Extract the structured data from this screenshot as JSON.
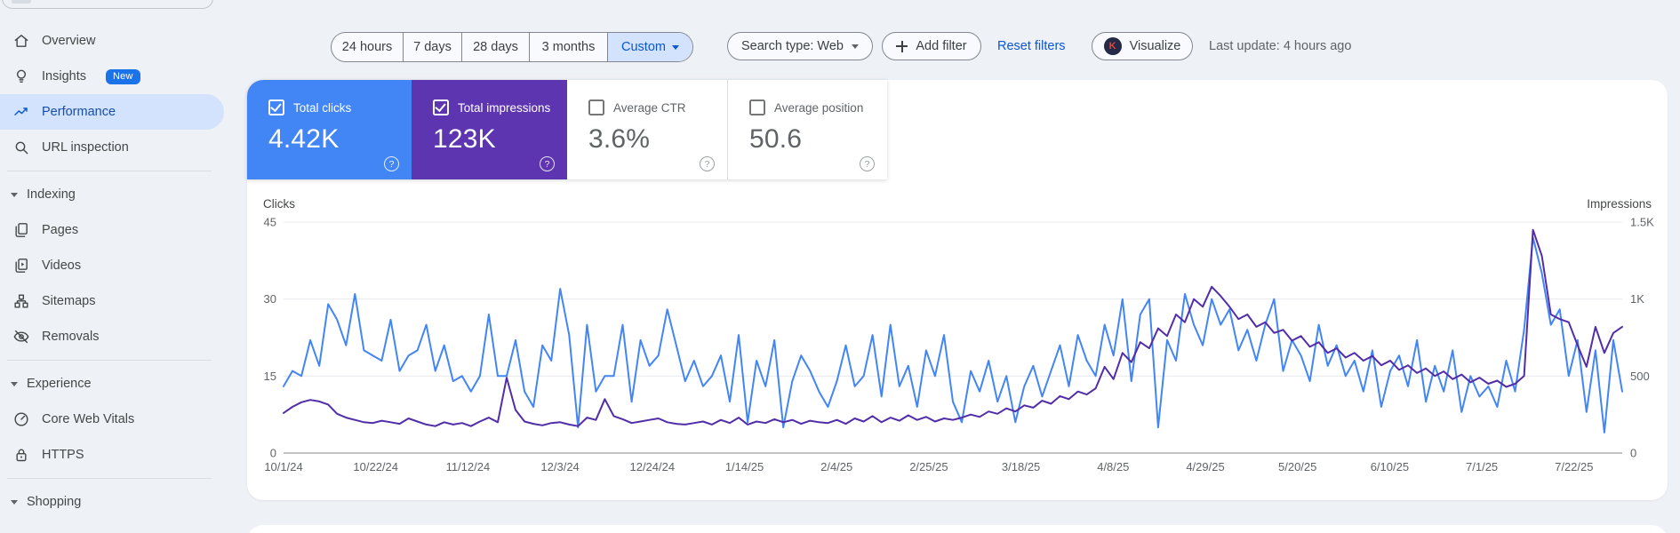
{
  "sidebar": {
    "sections": [
      {
        "items": [
          {
            "icon": "home",
            "label": "Overview"
          },
          {
            "icon": "lightbulb",
            "label": "Insights",
            "badge": "New"
          },
          {
            "icon": "trending-up",
            "label": "Performance",
            "active": true
          },
          {
            "icon": "search",
            "label": "URL inspection"
          }
        ]
      },
      {
        "header": "Indexing",
        "items": [
          {
            "icon": "pages",
            "label": "Pages"
          },
          {
            "icon": "videos",
            "label": "Videos"
          },
          {
            "icon": "sitemaps",
            "label": "Sitemaps"
          },
          {
            "icon": "eye-off",
            "label": "Removals"
          }
        ]
      },
      {
        "header": "Experience",
        "items": [
          {
            "icon": "speedometer",
            "label": "Core Web Vitals"
          },
          {
            "icon": "lock",
            "label": "HTTPS"
          }
        ]
      },
      {
        "header": "Shopping",
        "items": []
      }
    ]
  },
  "toolbar": {
    "date_ranges": [
      {
        "label": "24 hours"
      },
      {
        "label": "7 days"
      },
      {
        "label": "28 days"
      },
      {
        "label": "3 months"
      },
      {
        "label": "Custom",
        "selected": true,
        "caret": true
      }
    ],
    "search_type_label": "Search type: Web",
    "add_filter_label": "Add filter",
    "reset_label": "Reset filters",
    "visualize_label": "Visualize",
    "visualize_icon_letter": "K",
    "last_update": "Last update: 4 hours ago"
  },
  "cards": [
    {
      "label": "Total clicks",
      "value": "4.42K",
      "checked": true,
      "color": "#4285f4"
    },
    {
      "label": "Total impressions",
      "value": "123K",
      "checked": true,
      "color": "#5e35b1"
    },
    {
      "label": "Average CTR",
      "value": "3.6%",
      "checked": false
    },
    {
      "label": "Average position",
      "value": "50.6",
      "checked": false
    }
  ],
  "chart_data": {
    "type": "line",
    "x_tick_labels": [
      "10/1/24",
      "10/22/24",
      "11/12/24",
      "12/3/24",
      "12/24/24",
      "1/14/25",
      "2/4/25",
      "2/25/25",
      "3/18/25",
      "4/8/25",
      "4/29/25",
      "5/20/25",
      "6/10/25",
      "7/1/25",
      "7/22/25"
    ],
    "left_axis": {
      "label": "Clicks",
      "ticks": [
        45,
        30,
        15,
        0
      ],
      "max": 45
    },
    "right_axis": {
      "label": "Impressions",
      "tick_labels": [
        "1.5K",
        "1K",
        "500",
        "0"
      ],
      "max": 1500
    },
    "grid": true,
    "legend_position": "none",
    "series": [
      {
        "name": "Total clicks",
        "axis": "left",
        "color": "#4285f4",
        "values": [
          13,
          16,
          15,
          22,
          17,
          29,
          26,
          21,
          31,
          20,
          19,
          18,
          26,
          16,
          19,
          20,
          25,
          16,
          21,
          14,
          15,
          12,
          15,
          27,
          15,
          15,
          22,
          12,
          9,
          21,
          18,
          32,
          23,
          5,
          25,
          12,
          15,
          15,
          25,
          10,
          22,
          17,
          19,
          28,
          21,
          14,
          18,
          13,
          15,
          19,
          10,
          23,
          6,
          18,
          13,
          22,
          5,
          14,
          19,
          16,
          12,
          9,
          14,
          21,
          13,
          15,
          23,
          11,
          25,
          13,
          17,
          9,
          20,
          15,
          23,
          10,
          6,
          16,
          12,
          18,
          10,
          15,
          6,
          13,
          17,
          11,
          16,
          21,
          13,
          23,
          18,
          15,
          25,
          19,
          30,
          14,
          27,
          30,
          5,
          22,
          18,
          31,
          25,
          21,
          30,
          25,
          28,
          20,
          24,
          18,
          25,
          30,
          16,
          22,
          19,
          14,
          25,
          17,
          21,
          15,
          18,
          12,
          20,
          9,
          16,
          19,
          13,
          22,
          10,
          17,
          12,
          20,
          8,
          15,
          11,
          13,
          9,
          18,
          12,
          24,
          42,
          35,
          25,
          28,
          15,
          22,
          8,
          20,
          4,
          22,
          12
        ]
      },
      {
        "name": "Total impressions",
        "axis": "right",
        "color": "#512da8",
        "values": [
          260,
          300,
          330,
          345,
          335,
          315,
          255,
          230,
          215,
          200,
          195,
          210,
          200,
          190,
          225,
          205,
          185,
          175,
          200,
          185,
          195,
          175,
          205,
          230,
          200,
          490,
          280,
          205,
          190,
          180,
          195,
          200,
          185,
          175,
          230,
          215,
          350,
          240,
          220,
          195,
          205,
          215,
          225,
          200,
          190,
          185,
          195,
          205,
          185,
          215,
          195,
          230,
          185,
          205,
          195,
          220,
          200,
          215,
          190,
          210,
          200,
          195,
          215,
          190,
          225,
          205,
          240,
          200,
          230,
          210,
          245,
          215,
          235,
          205,
          225,
          215,
          230,
          250,
          235,
          270,
          255,
          290,
          270,
          310,
          295,
          340,
          320,
          370,
          350,
          400,
          380,
          420,
          560,
          480,
          650,
          590,
          720,
          680,
          810,
          760,
          900,
          850,
          1000,
          950,
          1080,
          1020,
          950,
          870,
          900,
          820,
          850,
          780,
          800,
          730,
          760,
          690,
          720,
          650,
          680,
          620,
          650,
          600,
          630,
          570,
          600,
          540,
          570,
          520,
          550,
          500,
          530,
          480,
          510,
          460,
          490,
          450,
          470,
          430,
          450,
          500,
          1450,
          1280,
          900,
          870,
          850,
          700,
          560,
          820,
          650,
          780,
          820
        ]
      }
    ]
  }
}
